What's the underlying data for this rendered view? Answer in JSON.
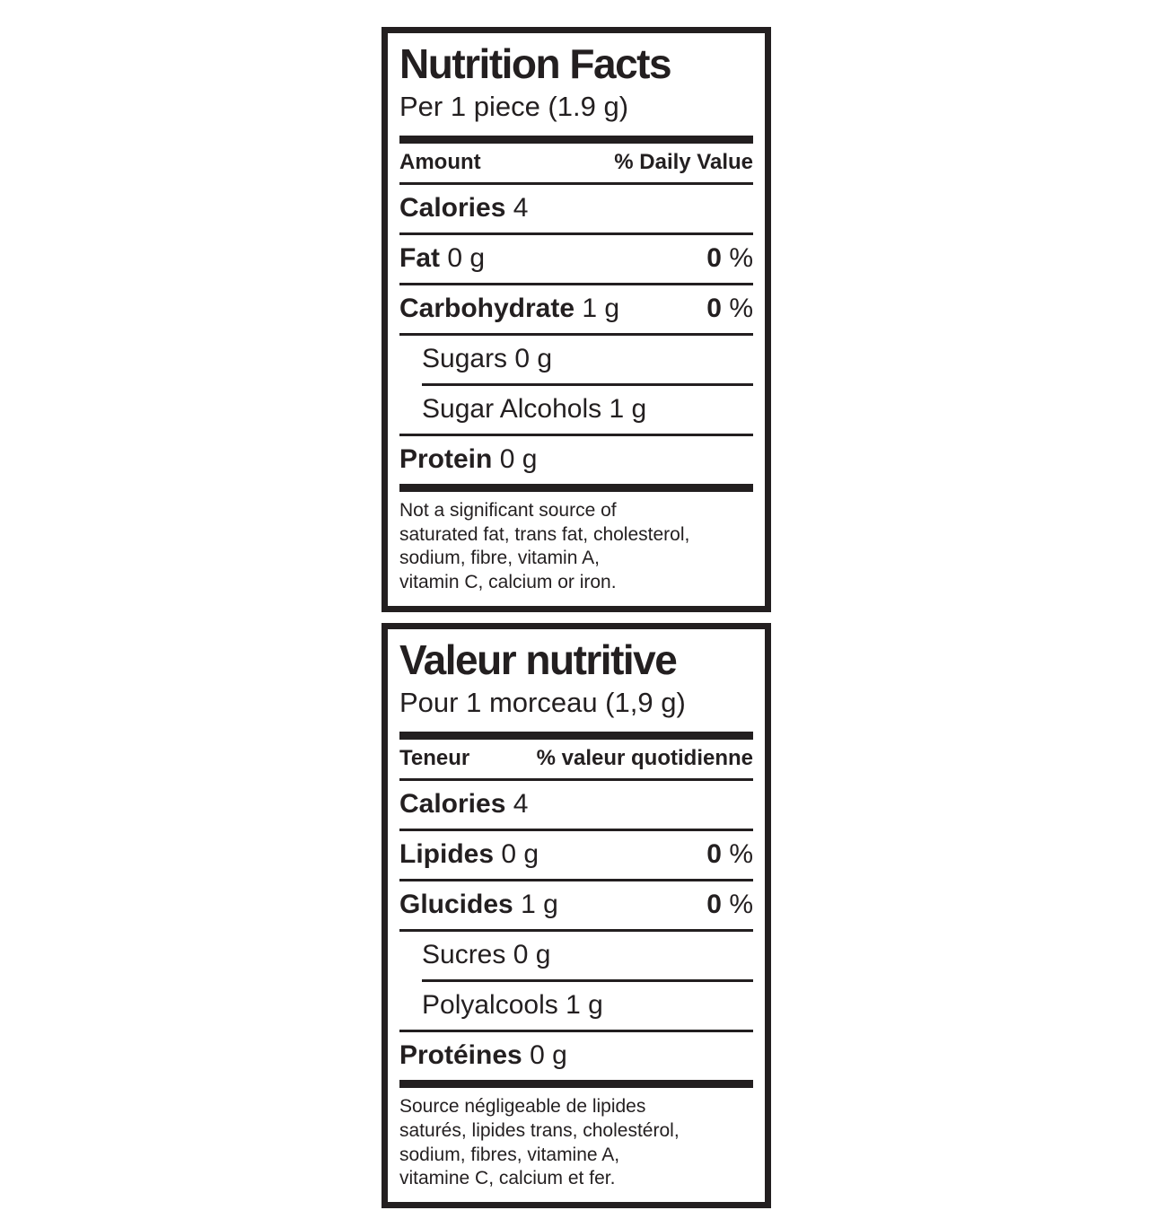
{
  "colors": {
    "ink": "#231f20",
    "background": "#ffffff"
  },
  "panels": [
    {
      "language": "en",
      "title": "Nutrition Facts",
      "serving": "Per 1 piece (1.9 g)",
      "columns": {
        "amount": "Amount",
        "daily_value": "% Daily Value"
      },
      "calories": {
        "label": "Calories",
        "value": "4"
      },
      "rows": [
        {
          "name": "Fat",
          "amount": "0 g",
          "dv": "0",
          "dv_unit": "%"
        },
        {
          "name": "Carbohydrate",
          "amount": "1 g",
          "dv": "0",
          "dv_unit": "%"
        },
        {
          "name": "Sugars",
          "amount": "0 g"
        },
        {
          "name": "Sugar Alcohols",
          "amount": "1 g"
        },
        {
          "name": "Protein",
          "amount": "0 g"
        }
      ],
      "footnote_lines": [
        "Not a significant source of",
        "saturated fat, trans fat, cholesterol,",
        "sodium, fibre, vitamin A,",
        "vitamin C, calcium or iron."
      ]
    },
    {
      "language": "fr",
      "title": "Valeur nutritive",
      "serving": "Pour 1 morceau (1,9 g)",
      "columns": {
        "amount": "Teneur",
        "daily_value": "% valeur quotidienne"
      },
      "calories": {
        "label": "Calories",
        "value": "4"
      },
      "rows": [
        {
          "name": "Lipides",
          "amount": "0 g",
          "dv": "0",
          "dv_unit": "%"
        },
        {
          "name": "Glucides",
          "amount": "1 g",
          "dv": "0",
          "dv_unit": "%"
        },
        {
          "name": "Sucres",
          "amount": "0 g"
        },
        {
          "name": "Polyalcools",
          "amount": "1 g"
        },
        {
          "name": "Protéines",
          "amount": "0 g"
        }
      ],
      "footnote_lines": [
        "Source négligeable de lipides",
        "saturés, lipides trans, cholestérol,",
        "sodium, fibres, vitamine A,",
        "vitamine C, calcium et fer."
      ]
    }
  ]
}
